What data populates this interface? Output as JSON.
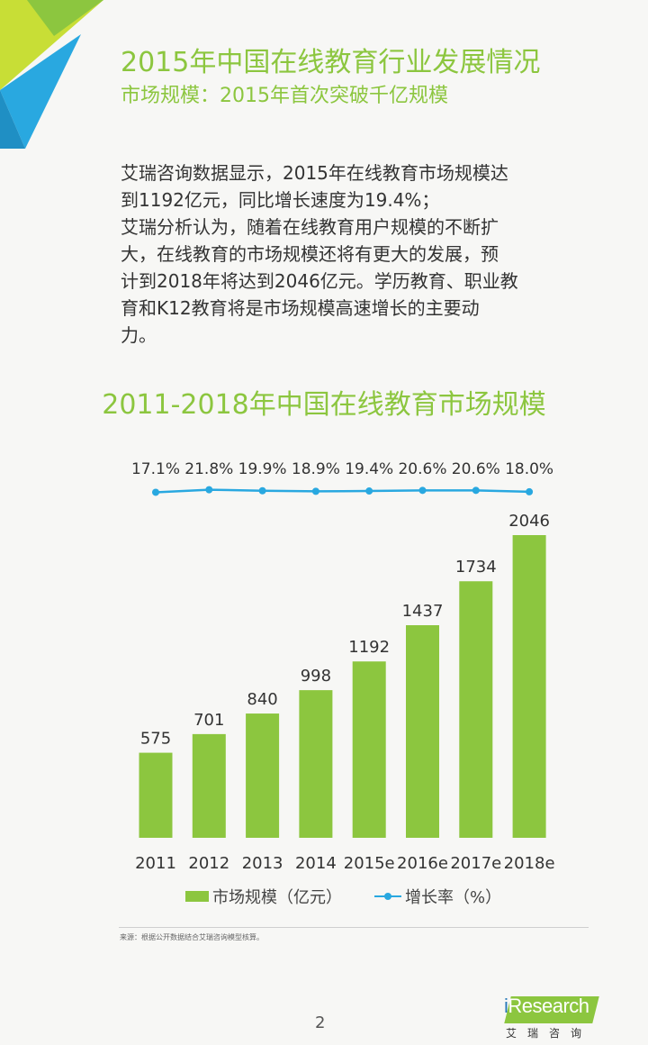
{
  "header": {
    "title": "2015年中国在线教育行业发展情况",
    "subtitle": "市场规模：2015年首次突破千亿规模"
  },
  "body": {
    "lines": [
      "艾瑞咨询数据显示，2015年在线教育市场规模达",
      "到1192亿元，同比增长速度为19.4%；",
      "艾瑞分析认为，随着在线教育用户规模的不断扩",
      "大，在线教育的市场规模还将有更大的发展，预",
      "计到2018年将达到2046亿元。学历教育、职业教",
      "育和K12教育将是市场规模高速增长的主要动",
      "力。"
    ]
  },
  "chart_data": {
    "type": "bar",
    "title": "2011-2018年中国在线教育市场规模",
    "categories": [
      "2011",
      "2012",
      "2013",
      "2014",
      "2015e",
      "2016e",
      "2017e",
      "2018e"
    ],
    "series": [
      {
        "name": "市场规模（亿元）",
        "type": "bar",
        "values": [
          575,
          701,
          840,
          998,
          1192,
          1437,
          1734,
          2046
        ],
        "labels": [
          "575",
          "701",
          "840",
          "998",
          "1192",
          "1437",
          "1734",
          "2046"
        ],
        "color": "#8cc63f"
      },
      {
        "name": "增长率（%）",
        "type": "line",
        "values": [
          17.1,
          21.8,
          19.9,
          18.9,
          19.4,
          20.6,
          20.6,
          18.0
        ],
        "labels": [
          "17.1%",
          "21.8%",
          "19.9%",
          "18.9%",
          "19.4%",
          "20.6%",
          "20.6%",
          "18.0%"
        ],
        "color": "#29a8e0"
      }
    ],
    "grid": false,
    "legend": "bottom"
  },
  "source": "来源：根据公开数据结合艾瑞咨询模型核算。",
  "footer": {
    "page": "2",
    "logo_text_i": "i",
    "logo_text": "Research",
    "logo_cn": "艾瑞咨询"
  }
}
